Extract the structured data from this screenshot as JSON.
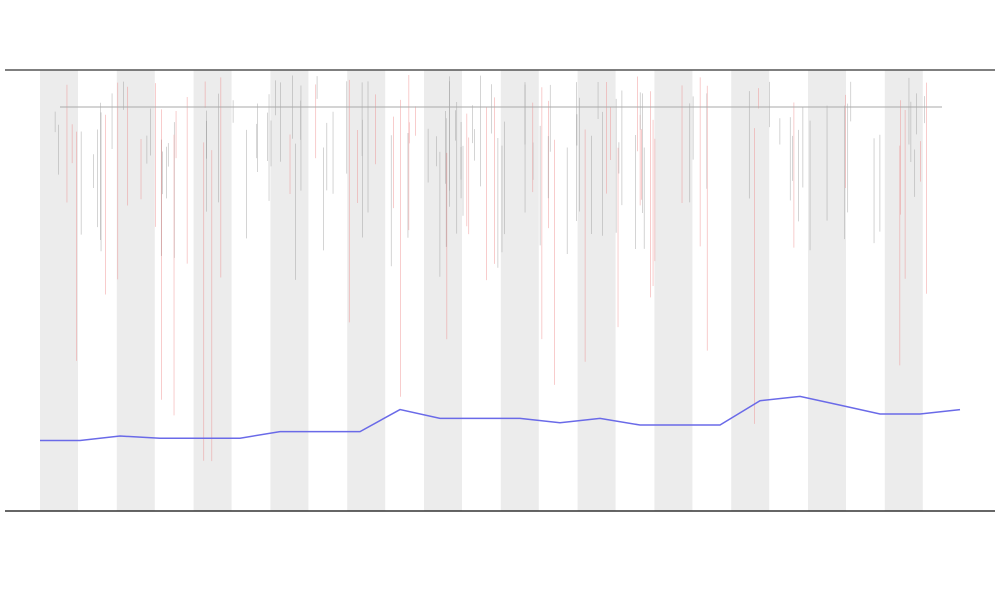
{
  "chart_data": {
    "type": "line",
    "categories": [
      null,
      null,
      null,
      null,
      null,
      null,
      null,
      null,
      null,
      null,
      null,
      null,
      null,
      null,
      null,
      null,
      null,
      null,
      null,
      null,
      null,
      null,
      null,
      null
    ],
    "series": [
      {
        "color": "#6a6ae8",
        "values": [
          16,
          16,
          17,
          16.5,
          16.5,
          16.5,
          18,
          18,
          18,
          23,
          21,
          21,
          21,
          20,
          21,
          19.5,
          19.5,
          19.5,
          25,
          26,
          24,
          22,
          22,
          23
        ]
      }
    ],
    "ylim": [
      0,
      100
    ]
  }
}
